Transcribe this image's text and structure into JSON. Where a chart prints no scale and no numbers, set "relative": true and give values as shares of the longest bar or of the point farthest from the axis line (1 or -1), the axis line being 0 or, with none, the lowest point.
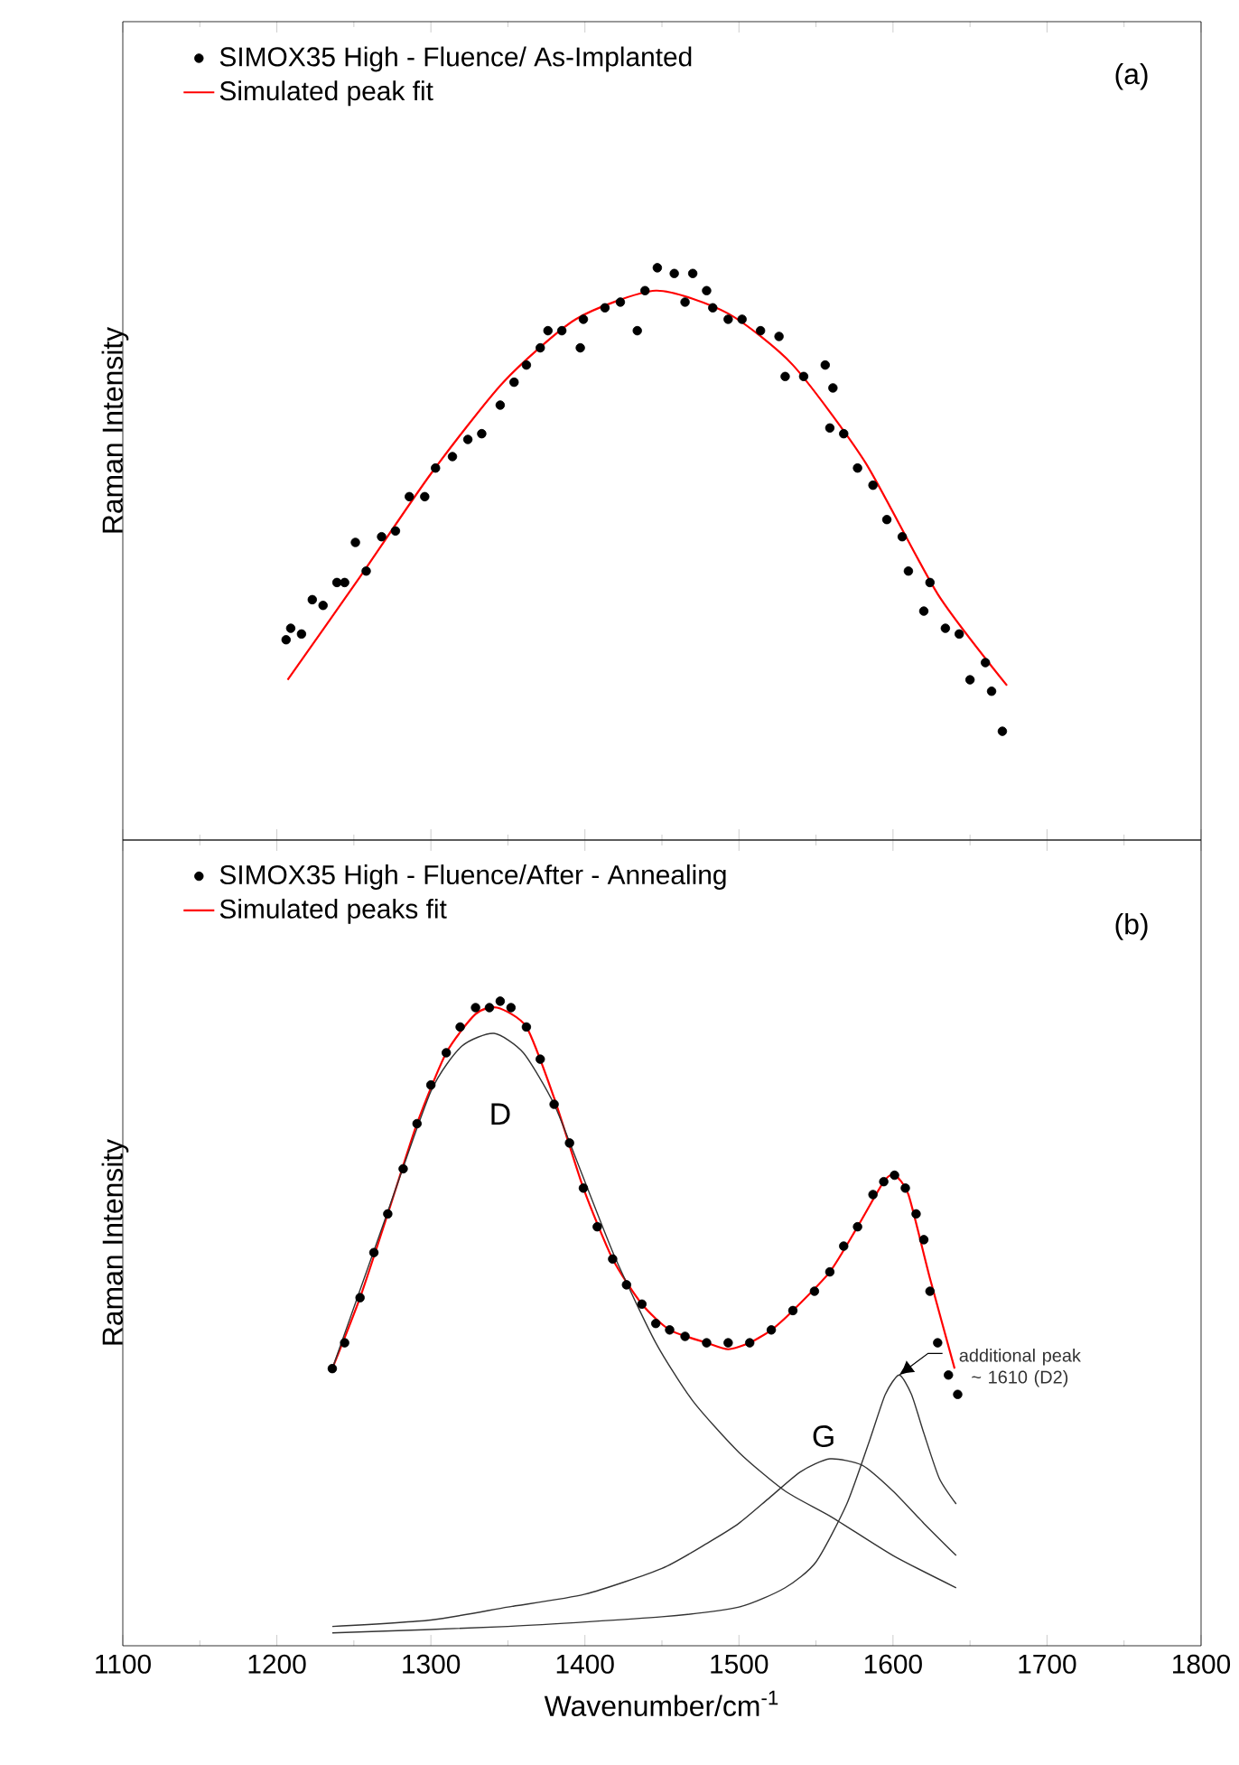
{
  "chart_data": [
    {
      "type": "scatter",
      "ylabel": "Raman Intensity",
      "relative": true,
      "xlim": [
        1100,
        1800
      ],
      "xticks": [
        1100,
        1200,
        1300,
        1400,
        1500,
        1600,
        1700,
        1800
      ],
      "tick_labels": false,
      "legend": "top left",
      "annotations": [
        "(a)"
      ],
      "series": [
        {
          "name": "SIMOX35 High - Fluence/ As-Implanted",
          "color": "#000000",
          "x": [
            1206,
            1209,
            1216,
            1223,
            1230,
            1239,
            1244,
            1251,
            1258,
            1268,
            1277,
            1286,
            1296,
            1303,
            1314,
            1324,
            1333,
            1345,
            1354,
            1362,
            1371,
            1376,
            1385,
            1397,
            1399,
            1413,
            1423,
            1434,
            1439,
            1447,
            1458,
            1465,
            1470,
            1479,
            1483,
            1493,
            1502,
            1514,
            1526,
            1530,
            1542,
            1556,
            1561,
            1559,
            1568,
            1577,
            1587,
            1596,
            1606,
            1610,
            1624,
            1620,
            1634,
            1643,
            1650,
            1660,
            1664,
            1671
          ],
          "values": [
            0.35,
            0.37,
            0.36,
            0.42,
            0.41,
            0.45,
            0.45,
            0.52,
            0.47,
            0.53,
            0.54,
            0.6,
            0.6,
            0.65,
            0.67,
            0.7,
            0.71,
            0.76,
            0.8,
            0.83,
            0.86,
            0.89,
            0.89,
            0.86,
            0.91,
            0.93,
            0.94,
            0.89,
            0.96,
            1.0,
            0.99,
            0.94,
            0.99,
            0.96,
            0.93,
            0.91,
            0.91,
            0.89,
            0.88,
            0.81,
            0.81,
            0.83,
            0.79,
            0.72,
            0.71,
            0.65,
            0.62,
            0.56,
            0.53,
            0.47,
            0.45,
            0.4,
            0.37,
            0.36,
            0.28,
            0.31,
            0.26,
            0.19
          ]
        },
        {
          "name": "Simulated peak fit",
          "type": "line",
          "marker": "none",
          "color": "#ff0000",
          "x": [
            1207,
            1254,
            1300,
            1347,
            1394,
            1446,
            1493,
            1535,
            1582,
            1629,
            1674
          ],
          "values": [
            0.28,
            0.46,
            0.64,
            0.8,
            0.91,
            0.96,
            0.92,
            0.83,
            0.66,
            0.43,
            0.27
          ]
        }
      ]
    },
    {
      "type": "scatter",
      "xlabel": "Wavenumber/cm$^{-1}$",
      "ylabel": "Raman Intensity",
      "relative": true,
      "xlim": [
        1100,
        1800
      ],
      "xticks": [
        1100,
        1200,
        1300,
        1400,
        1500,
        1600,
        1700,
        1800
      ],
      "tick_labels": "x",
      "legend": "top left",
      "annotations": [
        "(b)",
        "D",
        "G",
        {
          "text": "additional peak ~ 1610 (D2)",
          "x": 1604,
          "y": 0.42
        }
      ],
      "series": [
        {
          "name": "SIMOX35 High - Fluence/After - Annealing",
          "color": "#000000",
          "x": [
            1236,
            1244,
            1254,
            1263,
            1272,
            1282,
            1291,
            1300,
            1310,
            1319,
            1329,
            1338,
            1345,
            1352,
            1362,
            1371,
            1380,
            1390,
            1399,
            1408,
            1418,
            1427,
            1437,
            1446,
            1455,
            1465,
            1479,
            1493,
            1507,
            1521,
            1535,
            1549,
            1559,
            1568,
            1577,
            1587,
            1594,
            1601,
            1608,
            1615,
            1620,
            1624,
            1629,
            1636,
            1642
          ],
          "values": [
            0.43,
            0.47,
            0.54,
            0.61,
            0.67,
            0.74,
            0.81,
            0.87,
            0.92,
            0.96,
            0.99,
            0.99,
            1.0,
            0.99,
            0.96,
            0.91,
            0.84,
            0.78,
            0.71,
            0.65,
            0.6,
            0.56,
            0.53,
            0.5,
            0.49,
            0.48,
            0.47,
            0.47,
            0.47,
            0.49,
            0.52,
            0.55,
            0.58,
            0.62,
            0.65,
            0.7,
            0.72,
            0.73,
            0.71,
            0.67,
            0.63,
            0.55,
            0.47,
            0.42,
            0.39
          ]
        },
        {
          "name": "Simulated peaks fit",
          "type": "line",
          "marker": "none",
          "color": "#ff0000",
          "x": [
            1236,
            1254,
            1272,
            1291,
            1310,
            1329,
            1343,
            1362,
            1380,
            1399,
            1418,
            1437,
            1455,
            1479,
            1493,
            1507,
            1521,
            1535,
            1559,
            1577,
            1594,
            1601,
            1610,
            1624,
            1640
          ],
          "values": [
            0.43,
            0.54,
            0.67,
            0.81,
            0.92,
            0.98,
            0.99,
            0.96,
            0.85,
            0.71,
            0.6,
            0.53,
            0.49,
            0.47,
            0.46,
            0.47,
            0.49,
            0.52,
            0.58,
            0.65,
            0.72,
            0.73,
            0.7,
            0.57,
            0.43
          ]
        },
        {
          "type": "line",
          "marker": "none",
          "color": "#333333",
          "x": [
            1236,
            1270,
            1300,
            1320,
            1341,
            1360,
            1380,
            1400,
            1420,
            1446,
            1470,
            1500,
            1530,
            1560,
            1600,
            1641
          ],
          "values": [
            0.43,
            0.66,
            0.86,
            0.93,
            0.95,
            0.92,
            0.84,
            0.72,
            0.6,
            0.47,
            0.38,
            0.3,
            0.24,
            0.2,
            0.14,
            0.09
          ]
        },
        {
          "type": "line",
          "marker": "none",
          "color": "#333333",
          "x": [
            1236,
            1300,
            1350,
            1400,
            1450,
            1480,
            1500,
            1520,
            1540,
            1559,
            1580,
            1600,
            1620,
            1641
          ],
          "values": [
            0.03,
            0.04,
            0.06,
            0.08,
            0.12,
            0.16,
            0.19,
            0.23,
            0.27,
            0.29,
            0.28,
            0.24,
            0.19,
            0.14
          ]
        },
        {
          "type": "line",
          "marker": "none",
          "color": "#333333",
          "x": [
            1236,
            1350,
            1450,
            1500,
            1530,
            1550,
            1570,
            1585,
            1595,
            1604,
            1612,
            1620,
            1630,
            1641
          ],
          "values": [
            0.02,
            0.03,
            0.045,
            0.06,
            0.09,
            0.13,
            0.22,
            0.32,
            0.39,
            0.42,
            0.39,
            0.33,
            0.26,
            0.22
          ]
        }
      ]
    }
  ]
}
